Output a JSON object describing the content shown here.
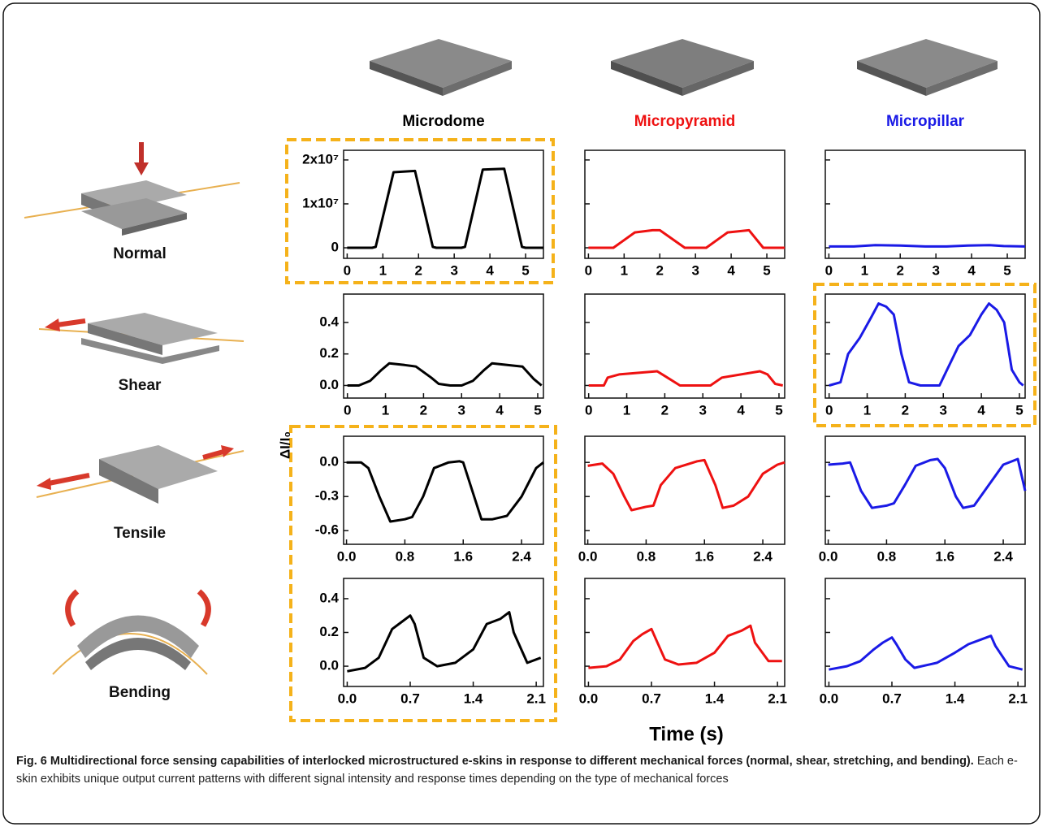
{
  "columns": [
    {
      "name": "Microdome",
      "color": "#000000"
    },
    {
      "name": "Micropyramid",
      "color": "#ee1111"
    },
    {
      "name": "Micropillar",
      "color": "#1a1ae6"
    }
  ],
  "rows": [
    "Normal",
    "Shear",
    "Tensile",
    "Bending"
  ],
  "y_label": "ΔI/I₀",
  "x_label": "Time (s)",
  "caption": {
    "bold": "Fig. 6 Multidirectional force sensing capabilities of interlocked microstructured e-skins in response to different mechanical forces (normal, shear, stretching, and bending).",
    "text": "Each e-skin exhibits unique output current patterns with different signal intensity and response times depending on the type of mechanical forces"
  },
  "chart_data": [
    {
      "type": "line",
      "color": "#000000",
      "show_ytick_labels": true,
      "xlim": [
        -0.1,
        5.5
      ],
      "ylim": [
        -2400000,
        22200000
      ],
      "xticks": [
        0,
        1,
        2,
        3,
        4,
        5
      ],
      "yticks": [
        0,
        {
          "value": 10000000,
          "label": "1x10⁷"
        },
        {
          "value": 20000000,
          "label": "2x10⁷"
        }
      ],
      "x": [
        0,
        0.7,
        0.8,
        1.3,
        1.9,
        2.4,
        2.5,
        3.2,
        3.3,
        3.8,
        4.4,
        4.9,
        5.0,
        5.5
      ],
      "values": [
        0,
        0,
        200000,
        17200000,
        17500000,
        200000,
        0,
        0,
        200000,
        17800000,
        18000000,
        200000,
        0,
        0
      ]
    },
    {
      "type": "line",
      "color": "#ee1111",
      "show_ytick_labels": false,
      "xlim": [
        -0.1,
        5.5
      ],
      "ylim": [
        -2400000,
        22200000
      ],
      "xticks": [
        0,
        1,
        2,
        3,
        4,
        5
      ],
      "yticks": [
        0,
        10000000,
        20000000
      ],
      "x": [
        0,
        0.7,
        1.3,
        1.8,
        2.0,
        2.7,
        3.3,
        3.9,
        4.5,
        4.9,
        5.5
      ],
      "values": [
        0,
        0,
        3500000,
        4000000,
        4000000,
        0,
        0,
        3500000,
        4000000,
        0,
        0
      ]
    },
    {
      "type": "line",
      "color": "#1a1ae6",
      "show_ytick_labels": false,
      "xlim": [
        -0.1,
        5.5
      ],
      "ylim": [
        -2400000,
        22200000
      ],
      "xticks": [
        0,
        1,
        2,
        3,
        4,
        5
      ],
      "yticks": [
        0,
        10000000,
        20000000
      ],
      "x": [
        0,
        0.7,
        1.3,
        2.0,
        2.7,
        3.3,
        3.9,
        4.5,
        4.9,
        5.5
      ],
      "values": [
        300000,
        300000,
        600000,
        500000,
        300000,
        300000,
        500000,
        600000,
        400000,
        300000
      ]
    },
    {
      "type": "line",
      "color": "#000000",
      "show_ytick_labels": true,
      "xlim": [
        -0.1,
        5.15
      ],
      "ylim": [
        -0.08,
        0.58
      ],
      "xticks": [
        0,
        1,
        2,
        3,
        4,
        5
      ],
      "yticks": [
        {
          "value": 0,
          "label": "0.0"
        },
        0.2,
        0.4
      ],
      "x": [
        0,
        0.3,
        0.6,
        0.9,
        1.1,
        1.5,
        1.8,
        2.2,
        2.4,
        2.7,
        3.0,
        3.3,
        3.6,
        3.8,
        4.2,
        4.6,
        4.9,
        5.1
      ],
      "values": [
        0,
        0,
        0.03,
        0.1,
        0.14,
        0.13,
        0.12,
        0.05,
        0.01,
        0,
        0,
        0.03,
        0.1,
        0.14,
        0.13,
        0.12,
        0.04,
        0
      ]
    },
    {
      "type": "line",
      "color": "#ee1111",
      "show_ytick_labels": false,
      "xlim": [
        -0.1,
        5.15
      ],
      "ylim": [
        -0.08,
        0.58
      ],
      "xticks": [
        0,
        1,
        2,
        3,
        4,
        5
      ],
      "yticks": [
        0,
        0.2,
        0.4
      ],
      "x": [
        0,
        0.4,
        0.5,
        0.8,
        1.8,
        2.0,
        2.4,
        3.2,
        3.5,
        4.5,
        4.7,
        4.9,
        5.1
      ],
      "values": [
        0,
        0,
        0.05,
        0.07,
        0.09,
        0.06,
        0,
        0,
        0.05,
        0.09,
        0.07,
        0.01,
        0
      ]
    },
    {
      "type": "line",
      "color": "#1a1ae6",
      "show_ytick_labels": false,
      "xlim": [
        -0.1,
        5.15
      ],
      "ylim": [
        -0.08,
        0.58
      ],
      "xticks": [
        0,
        1,
        2,
        3,
        4,
        5
      ],
      "yticks": [
        0,
        0.2,
        0.4
      ],
      "x": [
        0,
        0.3,
        0.5,
        0.8,
        1.1,
        1.3,
        1.5,
        1.7,
        1.9,
        2.1,
        2.4,
        2.9,
        3.1,
        3.4,
        3.7,
        4.0,
        4.2,
        4.4,
        4.6,
        4.8,
        5.0,
        5.1
      ],
      "values": [
        0,
        0.02,
        0.2,
        0.3,
        0.43,
        0.52,
        0.5,
        0.45,
        0.2,
        0.02,
        0,
        0,
        0.1,
        0.25,
        0.32,
        0.45,
        0.52,
        0.48,
        0.4,
        0.1,
        0.02,
        0
      ]
    },
    {
      "type": "line",
      "color": "#000000",
      "show_ytick_labels": true,
      "xlim": [
        -0.04,
        2.7
      ],
      "ylim": [
        -0.72,
        0.23
      ],
      "xticks": [
        {
          "value": 0,
          "label": "0.0"
        },
        0.8,
        1.6,
        2.4
      ],
      "yticks": [
        -0.6,
        -0.3,
        {
          "value": 0,
          "label": "0.0"
        }
      ],
      "x": [
        0,
        0.2,
        0.3,
        0.45,
        0.6,
        0.8,
        0.9,
        1.05,
        1.2,
        1.4,
        1.55,
        1.6,
        1.75,
        1.85,
        2.0,
        2.2,
        2.4,
        2.6,
        2.7
      ],
      "values": [
        0,
        0,
        -0.05,
        -0.3,
        -0.52,
        -0.5,
        -0.48,
        -0.3,
        -0.05,
        0,
        0.01,
        0,
        -0.3,
        -0.5,
        -0.5,
        -0.47,
        -0.3,
        -0.05,
        0
      ]
    },
    {
      "type": "line",
      "color": "#ee1111",
      "show_ytick_labels": false,
      "xlim": [
        -0.04,
        2.7
      ],
      "ylim": [
        -0.72,
        0.23
      ],
      "xticks": [
        {
          "value": 0,
          "label": "0.0"
        },
        0.8,
        1.6,
        2.4
      ],
      "yticks": [
        -0.6,
        -0.3,
        0
      ],
      "x": [
        0,
        0.2,
        0.35,
        0.5,
        0.6,
        0.8,
        0.9,
        1.0,
        1.2,
        1.5,
        1.6,
        1.75,
        1.85,
        2.0,
        2.2,
        2.4,
        2.6,
        2.7
      ],
      "values": [
        -0.03,
        -0.01,
        -0.1,
        -0.3,
        -0.42,
        -0.39,
        -0.38,
        -0.2,
        -0.05,
        0.01,
        0.02,
        -0.2,
        -0.4,
        -0.38,
        -0.3,
        -0.1,
        -0.02,
        0
      ]
    },
    {
      "type": "line",
      "color": "#1a1ae6",
      "show_ytick_labels": false,
      "xlim": [
        -0.04,
        2.7
      ],
      "ylim": [
        -0.72,
        0.23
      ],
      "xticks": [
        {
          "value": 0,
          "label": "0.0"
        },
        0.8,
        1.6,
        2.4
      ],
      "yticks": [
        -0.6,
        -0.3,
        0
      ],
      "x": [
        0,
        0.2,
        0.3,
        0.45,
        0.6,
        0.8,
        0.9,
        1.05,
        1.2,
        1.4,
        1.5,
        1.6,
        1.75,
        1.85,
        2.0,
        2.2,
        2.4,
        2.6,
        2.7
      ],
      "values": [
        -0.02,
        -0.01,
        0,
        -0.25,
        -0.4,
        -0.38,
        -0.36,
        -0.2,
        -0.03,
        0.02,
        0.03,
        -0.05,
        -0.3,
        -0.4,
        -0.38,
        -0.2,
        -0.02,
        0.03,
        -0.25
      ]
    },
    {
      "type": "line",
      "color": "#000000",
      "show_ytick_labels": true,
      "xlim": [
        -0.04,
        2.18
      ],
      "ylim": [
        -0.12,
        0.52
      ],
      "xticks": [
        {
          "value": 0,
          "label": "0.0"
        },
        0.7,
        1.4,
        2.1
      ],
      "yticks": [
        {
          "value": 0,
          "label": "0.0"
        },
        0.2,
        0.4
      ],
      "x": [
        0,
        0.2,
        0.35,
        0.5,
        0.6,
        0.7,
        0.75,
        0.85,
        1.0,
        1.2,
        1.4,
        1.55,
        1.7,
        1.8,
        1.85,
        2.0,
        2.15
      ],
      "values": [
        -0.03,
        -0.01,
        0.05,
        0.22,
        0.26,
        0.3,
        0.25,
        0.05,
        0,
        0.02,
        0.1,
        0.25,
        0.28,
        0.32,
        0.2,
        0.02,
        0.05
      ]
    },
    {
      "type": "line",
      "color": "#ee1111",
      "show_ytick_labels": false,
      "xlim": [
        -0.04,
        2.18
      ],
      "ylim": [
        -0.12,
        0.52
      ],
      "xticks": [
        {
          "value": 0,
          "label": "0.0"
        },
        0.7,
        1.4,
        2.1
      ],
      "yticks": [
        0,
        0.2,
        0.4
      ],
      "x": [
        0,
        0.2,
        0.35,
        0.5,
        0.6,
        0.7,
        0.75,
        0.85,
        1.0,
        1.2,
        1.4,
        1.55,
        1.7,
        1.8,
        1.85,
        2.0,
        2.15
      ],
      "values": [
        -0.01,
        0,
        0.04,
        0.15,
        0.19,
        0.22,
        0.16,
        0.04,
        0.01,
        0.02,
        0.08,
        0.18,
        0.21,
        0.24,
        0.14,
        0.03,
        0.03
      ]
    },
    {
      "type": "line",
      "color": "#1a1ae6",
      "show_ytick_labels": false,
      "xlim": [
        -0.04,
        2.18
      ],
      "ylim": [
        -0.12,
        0.52
      ],
      "xticks": [
        {
          "value": 0,
          "label": "0.0"
        },
        0.7,
        1.4,
        2.1
      ],
      "yticks": [
        0,
        0.2,
        0.4
      ],
      "x": [
        0,
        0.2,
        0.35,
        0.5,
        0.6,
        0.7,
        0.75,
        0.85,
        0.95,
        1.2,
        1.4,
        1.55,
        1.7,
        1.8,
        1.85,
        2.0,
        2.15
      ],
      "values": [
        -0.02,
        0,
        0.03,
        0.1,
        0.14,
        0.17,
        0.13,
        0.04,
        -0.01,
        0.02,
        0.08,
        0.13,
        0.16,
        0.18,
        0.12,
        0.0,
        -0.02
      ]
    }
  ]
}
